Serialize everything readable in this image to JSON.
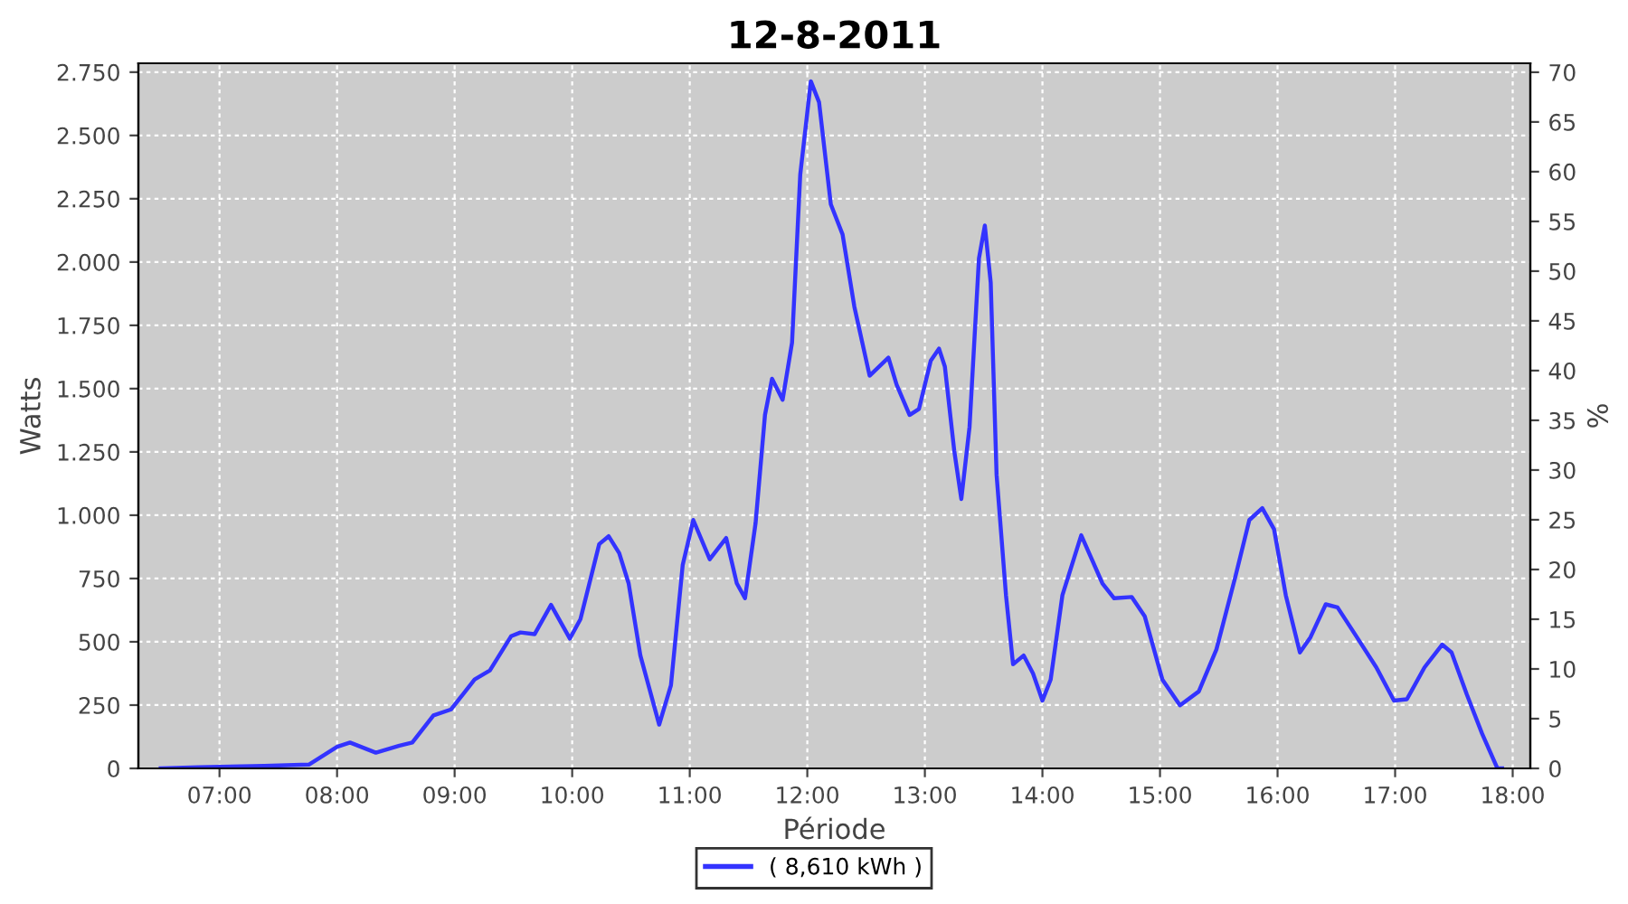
{
  "chart_data": {
    "type": "line",
    "title": "12-8-2011",
    "xlabel": "Période",
    "ylabel": "Watts",
    "y2label": "%",
    "xlim": [
      6.31,
      18.15
    ],
    "xticks": [
      {
        "value": 7,
        "label": "07:00"
      },
      {
        "value": 8,
        "label": "08:00"
      },
      {
        "value": 9,
        "label": "09:00"
      },
      {
        "value": 10,
        "label": "10:00"
      },
      {
        "value": 11,
        "label": "11:00"
      },
      {
        "value": 12,
        "label": "12:00"
      },
      {
        "value": 13,
        "label": "13:00"
      },
      {
        "value": 14,
        "label": "14:00"
      },
      {
        "value": 15,
        "label": "15:00"
      },
      {
        "value": 16,
        "label": "16:00"
      },
      {
        "value": 17,
        "label": "17:00"
      },
      {
        "value": 18,
        "label": "18:00"
      }
    ],
    "ylim": [
      0,
      2785
    ],
    "yticks": [
      0,
      250,
      500,
      750,
      {
        "value": 1000,
        "label": "1.000"
      },
      {
        "value": 1250,
        "label": "1.250"
      },
      {
        "value": 1500,
        "label": "1.500"
      },
      {
        "value": 1750,
        "label": "1.750"
      },
      {
        "value": 2000,
        "label": "2.000"
      },
      {
        "value": 2250,
        "label": "2.250"
      },
      {
        "value": 2500,
        "label": "2.500"
      },
      {
        "value": 2750,
        "label": "2.750"
      }
    ],
    "y2lim": [
      0,
      70.9
    ],
    "y2ticks": [
      0,
      5,
      10,
      15,
      20,
      25,
      30,
      35,
      40,
      45,
      50,
      55,
      60,
      65,
      70
    ],
    "grid": true,
    "legend": "bottom",
    "marker": "none",
    "line_style": "solid",
    "series": [
      {
        "name": "( 8,610 kWh )",
        "color": "#3333ff",
        "x": [
          6.5,
          6.82,
          7.38,
          7.76,
          8.0,
          8.11,
          8.33,
          8.53,
          8.64,
          8.82,
          8.97,
          9.17,
          9.3,
          9.48,
          9.56,
          9.68,
          9.82,
          9.98,
          10.07,
          10.23,
          10.31,
          10.4,
          10.48,
          10.58,
          10.74,
          10.84,
          10.94,
          11.03,
          11.17,
          11.31,
          11.4,
          11.47,
          11.56,
          11.64,
          11.7,
          11.79,
          11.87,
          11.94,
          12.03,
          12.1,
          12.2,
          12.3,
          12.4,
          12.53,
          12.69,
          12.76,
          12.87,
          12.95,
          13.05,
          13.12,
          13.17,
          13.25,
          13.31,
          13.38,
          13.46,
          13.51,
          13.56,
          13.61,
          13.69,
          13.75,
          13.84,
          13.92,
          14.0,
          14.07,
          14.17,
          14.33,
          14.51,
          14.61,
          14.76,
          14.87,
          15.02,
          15.17,
          15.33,
          15.48,
          15.64,
          15.76,
          15.87,
          15.97,
          16.07,
          16.19,
          16.28,
          16.41,
          16.51,
          16.66,
          16.84,
          16.99,
          17.1,
          17.25,
          17.4,
          17.48,
          17.61,
          17.74,
          17.87,
          17.91
        ],
        "values": [
          0,
          5,
          10,
          15,
          85,
          102,
          62,
          90,
          102,
          209,
          233,
          351,
          387,
          522,
          537,
          530,
          646,
          513,
          589,
          886,
          917,
          850,
          731,
          446,
          173,
          328,
          803,
          981,
          826,
          910,
          731,
          672,
          969,
          1396,
          1539,
          1456,
          1681,
          2346,
          2714,
          2631,
          2228,
          2109,
          1824,
          1551,
          1622,
          1515,
          1396,
          1420,
          1610,
          1658,
          1587,
          1254,
          1064,
          1349,
          2014,
          2144,
          1919,
          1159,
          684,
          411,
          446,
          375,
          268,
          351,
          684,
          921,
          731,
          672,
          677,
          601,
          351,
          249,
          304,
          470,
          755,
          981,
          1028,
          945,
          684,
          458,
          518,
          648,
          636,
          529,
          399,
          268,
          273,
          399,
          489,
          458,
          292,
          137,
          0,
          0
        ]
      }
    ]
  }
}
